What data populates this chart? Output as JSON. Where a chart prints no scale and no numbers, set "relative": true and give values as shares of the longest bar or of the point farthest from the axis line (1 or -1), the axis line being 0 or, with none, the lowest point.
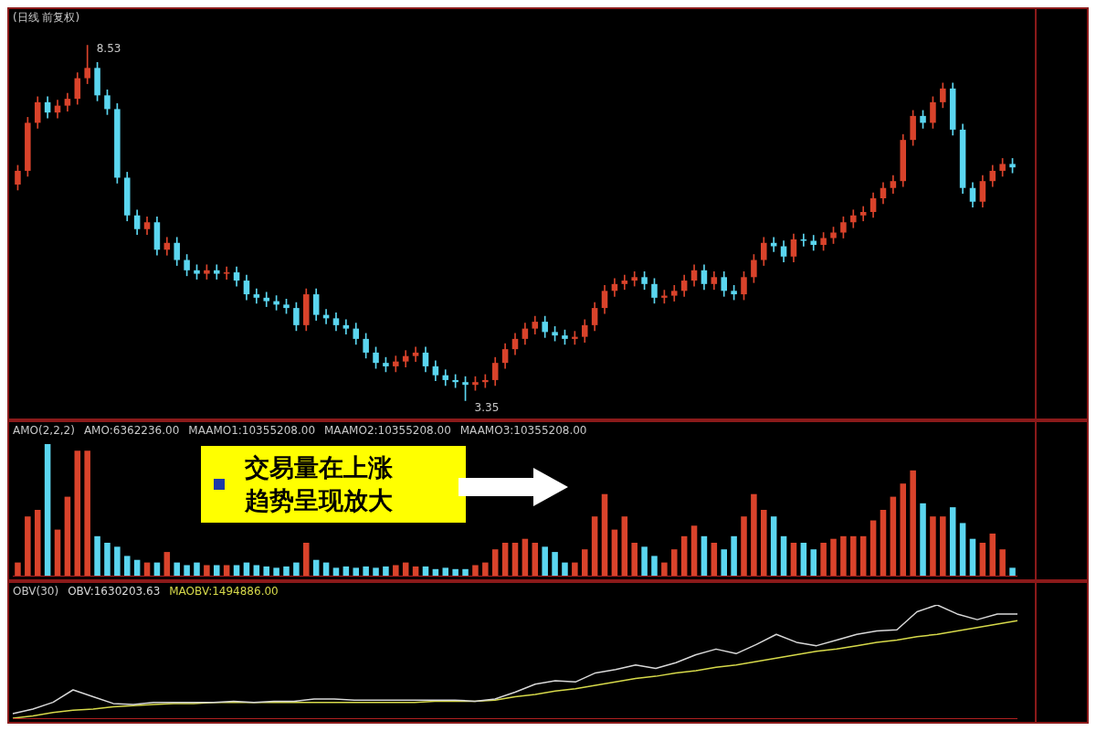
{
  "chart_data": [
    {
      "type": "candlestick",
      "title": "(日线 前复权)",
      "categories": [
        null,
        null,
        null,
        null,
        null,
        null,
        null,
        null,
        null,
        null,
        null,
        null,
        null,
        null,
        null,
        null,
        null,
        null,
        null,
        null,
        null,
        null,
        null,
        null,
        null,
        null,
        null,
        null,
        null,
        null,
        null,
        null,
        null,
        null,
        null,
        null,
        null,
        null,
        null,
        null,
        null,
        null,
        null,
        null,
        null,
        null,
        null,
        null,
        null,
        null,
        null,
        null,
        null,
        null,
        null,
        null,
        null,
        null,
        null,
        null,
        null,
        null,
        null,
        null,
        null,
        null,
        null,
        null,
        null,
        null,
        null,
        null,
        null,
        null,
        null,
        null,
        null,
        null,
        null,
        null,
        null,
        null,
        null,
        null,
        null,
        null,
        null,
        null,
        null,
        null,
        null,
        null,
        null,
        null,
        null,
        null,
        null,
        null,
        null,
        null,
        null
      ],
      "ohlc": [
        [
          6.5,
          6.78,
          6.42,
          6.7
        ],
        [
          6.7,
          7.48,
          6.62,
          7.4
        ],
        [
          7.4,
          7.78,
          7.32,
          7.7
        ],
        [
          7.7,
          7.78,
          7.47,
          7.55
        ],
        [
          7.55,
          7.73,
          7.47,
          7.65
        ],
        [
          7.65,
          7.83,
          7.57,
          7.75
        ],
        [
          7.75,
          8.13,
          7.67,
          8.05
        ],
        [
          8.05,
          8.53,
          7.97,
          8.2
        ],
        [
          8.2,
          8.28,
          7.72,
          7.8
        ],
        [
          7.8,
          7.88,
          7.52,
          7.6
        ],
        [
          7.6,
          7.68,
          6.52,
          6.6
        ],
        [
          6.6,
          6.68,
          5.97,
          6.05
        ],
        [
          6.05,
          6.13,
          5.77,
          5.85
        ],
        [
          5.85,
          6.03,
          5.77,
          5.95
        ],
        [
          5.95,
          6.03,
          5.47,
          5.55
        ],
        [
          5.55,
          5.73,
          5.47,
          5.65
        ],
        [
          5.65,
          5.73,
          5.32,
          5.4
        ],
        [
          5.4,
          5.48,
          5.17,
          5.25
        ],
        [
          5.25,
          5.33,
          5.12,
          5.2
        ],
        [
          5.2,
          5.33,
          5.12,
          5.25
        ],
        [
          5.25,
          5.33,
          5.12,
          5.2
        ],
        [
          5.2,
          5.3,
          5.12,
          5.22
        ],
        [
          5.22,
          5.3,
          5.02,
          5.1
        ],
        [
          5.1,
          5.18,
          4.82,
          4.9
        ],
        [
          4.9,
          4.98,
          4.77,
          4.85
        ],
        [
          4.85,
          4.93,
          4.72,
          4.8
        ],
        [
          4.8,
          4.88,
          4.67,
          4.75
        ],
        [
          4.75,
          4.83,
          4.62,
          4.7
        ],
        [
          4.7,
          4.78,
          4.37,
          4.45
        ],
        [
          4.45,
          4.98,
          4.37,
          4.9
        ],
        [
          4.9,
          4.98,
          4.52,
          4.6
        ],
        [
          4.6,
          4.68,
          4.47,
          4.55
        ],
        [
          4.55,
          4.63,
          4.37,
          4.45
        ],
        [
          4.45,
          4.53,
          4.32,
          4.4
        ],
        [
          4.4,
          4.48,
          4.17,
          4.25
        ],
        [
          4.25,
          4.33,
          3.97,
          4.05
        ],
        [
          4.05,
          4.13,
          3.82,
          3.9
        ],
        [
          3.9,
          3.98,
          3.77,
          3.85
        ],
        [
          3.85,
          4.0,
          3.77,
          3.92
        ],
        [
          3.92,
          4.08,
          3.84,
          4.0
        ],
        [
          4.0,
          4.13,
          3.92,
          4.05
        ],
        [
          4.05,
          4.13,
          3.77,
          3.85
        ],
        [
          3.85,
          3.93,
          3.64,
          3.72
        ],
        [
          3.72,
          3.8,
          3.57,
          3.65
        ],
        [
          3.65,
          3.73,
          3.54,
          3.62
        ],
        [
          3.62,
          3.7,
          3.35,
          3.58
        ],
        [
          3.58,
          3.7,
          3.5,
          3.62
        ],
        [
          3.62,
          3.73,
          3.54,
          3.65
        ],
        [
          3.65,
          3.98,
          3.57,
          3.9
        ],
        [
          3.9,
          4.18,
          3.82,
          4.1
        ],
        [
          4.1,
          4.33,
          4.02,
          4.25
        ],
        [
          4.25,
          4.48,
          4.17,
          4.4
        ],
        [
          4.4,
          4.58,
          4.32,
          4.5
        ],
        [
          4.5,
          4.58,
          4.27,
          4.35
        ],
        [
          4.35,
          4.43,
          4.22,
          4.3
        ],
        [
          4.3,
          4.38,
          4.17,
          4.25
        ],
        [
          4.25,
          4.36,
          4.17,
          4.28
        ],
        [
          4.28,
          4.53,
          4.2,
          4.45
        ],
        [
          4.45,
          4.78,
          4.37,
          4.7
        ],
        [
          4.7,
          5.03,
          4.62,
          4.95
        ],
        [
          4.95,
          5.13,
          4.87,
          5.05
        ],
        [
          5.05,
          5.18,
          4.97,
          5.1
        ],
        [
          5.1,
          5.23,
          5.02,
          5.15
        ],
        [
          5.15,
          5.23,
          4.97,
          5.05
        ],
        [
          5.05,
          5.13,
          4.77,
          4.85
        ],
        [
          4.85,
          4.96,
          4.77,
          4.88
        ],
        [
          4.88,
          5.03,
          4.8,
          4.95
        ],
        [
          4.95,
          5.18,
          4.87,
          5.1
        ],
        [
          5.1,
          5.33,
          5.02,
          5.25
        ],
        [
          5.25,
          5.33,
          4.97,
          5.05
        ],
        [
          5.05,
          5.23,
          4.97,
          5.15
        ],
        [
          5.15,
          5.23,
          4.87,
          4.95
        ],
        [
          4.95,
          5.03,
          4.82,
          4.9
        ],
        [
          4.9,
          5.23,
          4.82,
          5.15
        ],
        [
          5.15,
          5.48,
          5.07,
          5.4
        ],
        [
          5.4,
          5.73,
          5.32,
          5.65
        ],
        [
          5.65,
          5.73,
          5.52,
          5.6
        ],
        [
          5.6,
          5.68,
          5.37,
          5.45
        ],
        [
          5.45,
          5.78,
          5.37,
          5.7
        ],
        [
          5.7,
          5.78,
          5.6,
          5.68
        ],
        [
          5.68,
          5.76,
          5.54,
          5.62
        ],
        [
          5.62,
          5.8,
          5.54,
          5.72
        ],
        [
          5.72,
          5.88,
          5.64,
          5.8
        ],
        [
          5.8,
          6.03,
          5.72,
          5.95
        ],
        [
          5.95,
          6.13,
          5.87,
          6.05
        ],
        [
          6.05,
          6.18,
          5.97,
          6.1
        ],
        [
          6.1,
          6.38,
          6.02,
          6.3
        ],
        [
          6.3,
          6.53,
          6.22,
          6.45
        ],
        [
          6.45,
          6.63,
          6.37,
          6.55
        ],
        [
          6.55,
          7.23,
          6.47,
          7.15
        ],
        [
          7.15,
          7.58,
          7.07,
          7.5
        ],
        [
          7.5,
          7.58,
          7.32,
          7.4
        ],
        [
          7.4,
          7.78,
          7.32,
          7.7
        ],
        [
          7.7,
          7.98,
          7.62,
          7.9
        ],
        [
          7.9,
          7.98,
          7.22,
          7.3
        ],
        [
          7.3,
          7.38,
          6.37,
          6.45
        ],
        [
          6.45,
          6.53,
          6.17,
          6.25
        ],
        [
          6.25,
          6.63,
          6.17,
          6.55
        ],
        [
          6.55,
          6.78,
          6.47,
          6.7
        ],
        [
          6.7,
          6.88,
          6.62,
          6.8
        ],
        [
          6.8,
          6.88,
          6.67,
          6.75
        ]
      ],
      "colors": [
        "#d9432b",
        "#d9432b",
        "#d9432b",
        "#5bd6f0",
        "#d9432b",
        "#d9432b",
        "#d9432b",
        "#d9432b",
        "#5bd6f0",
        "#5bd6f0",
        "#5bd6f0",
        "#5bd6f0",
        "#5bd6f0",
        "#d9432b",
        "#5bd6f0",
        "#d9432b",
        "#5bd6f0",
        "#5bd6f0",
        "#5bd6f0",
        "#d9432b",
        "#5bd6f0",
        "#d9432b",
        "#5bd6f0",
        "#5bd6f0",
        "#5bd6f0",
        "#5bd6f0",
        "#5bd6f0",
        "#5bd6f0",
        "#5bd6f0",
        "#d9432b",
        "#5bd6f0",
        "#5bd6f0",
        "#5bd6f0",
        "#5bd6f0",
        "#5bd6f0",
        "#5bd6f0",
        "#5bd6f0",
        "#5bd6f0",
        "#d9432b",
        "#d9432b",
        "#d9432b",
        "#5bd6f0",
        "#5bd6f0",
        "#5bd6f0",
        "#5bd6f0",
        "#5bd6f0",
        "#d9432b",
        "#d9432b",
        "#d9432b",
        "#d9432b",
        "#d9432b",
        "#d9432b",
        "#d9432b",
        "#5bd6f0",
        "#5bd6f0",
        "#5bd6f0",
        "#d9432b",
        "#d9432b",
        "#d9432b",
        "#d9432b",
        "#d9432b",
        "#d9432b",
        "#d9432b",
        "#5bd6f0",
        "#5bd6f0",
        "#d9432b",
        "#d9432b",
        "#d9432b",
        "#d9432b",
        "#5bd6f0",
        "#d9432b",
        "#5bd6f0",
        "#5bd6f0",
        "#d9432b",
        "#d9432b",
        "#d9432b",
        "#5bd6f0",
        "#5bd6f0",
        "#d9432b",
        "#5bd6f0",
        "#5bd6f0",
        "#d9432b",
        "#d9432b",
        "#d9432b",
        "#d9432b",
        "#d9432b",
        "#d9432b",
        "#d9432b",
        "#d9432b",
        "#d9432b",
        "#d9432b",
        "#5bd6f0",
        "#d9432b",
        "#d9432b",
        "#5bd6f0",
        "#5bd6f0",
        "#5bd6f0",
        "#d9432b",
        "#d9432b",
        "#d9432b",
        "#5bd6f0"
      ],
      "annotations": [
        "8.53",
        "3.35"
      ]
    },
    {
      "type": "bar",
      "relative": true,
      "categories": [
        null,
        null,
        null,
        null,
        null,
        null,
        null,
        null,
        null,
        null,
        null,
        null,
        null,
        null,
        null,
        null,
        null,
        null,
        null,
        null,
        null,
        null,
        null,
        null,
        null,
        null,
        null,
        null,
        null,
        null,
        null,
        null,
        null,
        null,
        null,
        null,
        null,
        null,
        null,
        null,
        null,
        null,
        null,
        null,
        null,
        null,
        null,
        null,
        null,
        null,
        null,
        null,
        null,
        null,
        null,
        null,
        null,
        null,
        null,
        null,
        null,
        null,
        null,
        null,
        null,
        null,
        null,
        null,
        null,
        null,
        null,
        null,
        null,
        null,
        null,
        null,
        null,
        null,
        null,
        null,
        null,
        null,
        null,
        null,
        null,
        null,
        null,
        null,
        null,
        null,
        null,
        null,
        null,
        null,
        null,
        null,
        null,
        null,
        null,
        null,
        null
      ],
      "values": [
        0.1,
        0.45,
        0.5,
        1.0,
        0.35,
        0.6,
        0.95,
        0.95,
        0.3,
        0.25,
        0.22,
        0.15,
        0.12,
        0.1,
        0.1,
        0.18,
        0.1,
        0.08,
        0.1,
        0.08,
        0.08,
        0.08,
        0.08,
        0.1,
        0.08,
        0.07,
        0.06,
        0.07,
        0.1,
        0.25,
        0.12,
        0.1,
        0.06,
        0.07,
        0.06,
        0.07,
        0.06,
        0.07,
        0.08,
        0.1,
        0.07,
        0.07,
        0.05,
        0.06,
        0.05,
        0.05,
        0.08,
        0.1,
        0.2,
        0.25,
        0.25,
        0.28,
        0.25,
        0.22,
        0.18,
        0.1,
        0.1,
        0.2,
        0.45,
        0.62,
        0.35,
        0.45,
        0.25,
        0.22,
        0.15,
        0.1,
        0.2,
        0.3,
        0.38,
        0.3,
        0.25,
        0.2,
        0.3,
        0.45,
        0.62,
        0.5,
        0.45,
        0.3,
        0.25,
        0.25,
        0.2,
        0.25,
        0.28,
        0.3,
        0.3,
        0.3,
        0.42,
        0.5,
        0.6,
        0.7,
        0.8,
        0.55,
        0.45,
        0.45,
        0.52,
        0.4,
        0.28,
        0.25,
        0.32,
        0.2,
        0.06
      ],
      "colors": [
        "#d9432b",
        "#d9432b",
        "#d9432b",
        "#5bd6f0",
        "#d9432b",
        "#d9432b",
        "#d9432b",
        "#d9432b",
        "#5bd6f0",
        "#5bd6f0",
        "#5bd6f0",
        "#5bd6f0",
        "#5bd6f0",
        "#d9432b",
        "#5bd6f0",
        "#d9432b",
        "#5bd6f0",
        "#5bd6f0",
        "#5bd6f0",
        "#d9432b",
        "#5bd6f0",
        "#d9432b",
        "#5bd6f0",
        "#5bd6f0",
        "#5bd6f0",
        "#5bd6f0",
        "#5bd6f0",
        "#5bd6f0",
        "#5bd6f0",
        "#d9432b",
        "#5bd6f0",
        "#5bd6f0",
        "#5bd6f0",
        "#5bd6f0",
        "#5bd6f0",
        "#5bd6f0",
        "#5bd6f0",
        "#5bd6f0",
        "#d9432b",
        "#d9432b",
        "#d9432b",
        "#5bd6f0",
        "#5bd6f0",
        "#5bd6f0",
        "#5bd6f0",
        "#5bd6f0",
        "#d9432b",
        "#d9432b",
        "#d9432b",
        "#d9432b",
        "#d9432b",
        "#d9432b",
        "#d9432b",
        "#5bd6f0",
        "#5bd6f0",
        "#5bd6f0",
        "#d9432b",
        "#d9432b",
        "#d9432b",
        "#d9432b",
        "#d9432b",
        "#d9432b",
        "#d9432b",
        "#5bd6f0",
        "#5bd6f0",
        "#d9432b",
        "#d9432b",
        "#d9432b",
        "#d9432b",
        "#5bd6f0",
        "#d9432b",
        "#5bd6f0",
        "#5bd6f0",
        "#d9432b",
        "#d9432b",
        "#d9432b",
        "#5bd6f0",
        "#5bd6f0",
        "#d9432b",
        "#5bd6f0",
        "#5bd6f0",
        "#d9432b",
        "#d9432b",
        "#d9432b",
        "#d9432b",
        "#d9432b",
        "#d9432b",
        "#d9432b",
        "#d9432b",
        "#d9432b",
        "#d9432b",
        "#5bd6f0",
        "#d9432b",
        "#d9432b",
        "#5bd6f0",
        "#5bd6f0",
        "#5bd6f0",
        "#d9432b",
        "#d9432b",
        "#d9432b",
        "#5bd6f0"
      ],
      "annotations": [
        "AMO(2,2,2)",
        "AMO:6362236.00",
        "MAAMO1:10355208.00",
        "MAAMO2:10355208.00",
        "MAAMO3:10355208.00",
        "交易量在上涨趋势呈现放大"
      ]
    },
    {
      "type": "line",
      "relative": true,
      "legend": "top left",
      "categories": [
        null,
        null,
        null,
        null,
        null,
        null,
        null,
        null,
        null,
        null,
        null,
        null,
        null,
        null,
        null,
        null,
        null,
        null,
        null,
        null,
        null,
        null,
        null,
        null,
        null,
        null,
        null,
        null,
        null,
        null,
        null,
        null,
        null,
        null,
        null,
        null,
        null,
        null,
        null,
        null,
        null,
        null,
        null,
        null,
        null,
        null,
        null,
        null,
        null,
        null,
        null
      ],
      "series": [
        {
          "name": "OBV:1630203.63",
          "color": "#d8d8d8",
          "values": [
            0.04,
            0.08,
            0.14,
            0.25,
            0.19,
            0.13,
            0.12,
            0.14,
            0.14,
            0.14,
            0.14,
            0.15,
            0.14,
            0.15,
            0.15,
            0.17,
            0.17,
            0.16,
            0.16,
            0.16,
            0.16,
            0.16,
            0.16,
            0.15,
            0.17,
            0.23,
            0.3,
            0.33,
            0.32,
            0.4,
            0.43,
            0.47,
            0.44,
            0.49,
            0.56,
            0.61,
            0.57,
            0.65,
            0.74,
            0.67,
            0.64,
            0.69,
            0.74,
            0.77,
            0.78,
            0.94,
            1.0,
            0.92,
            0.87,
            0.92,
            0.92
          ]
        },
        {
          "name": "MAOBV:1494886.00",
          "color": "#d6d94a",
          "values": [
            0.0,
            0.02,
            0.05,
            0.07,
            0.08,
            0.1,
            0.11,
            0.12,
            0.13,
            0.13,
            0.14,
            0.14,
            0.14,
            0.14,
            0.14,
            0.14,
            0.14,
            0.14,
            0.14,
            0.14,
            0.14,
            0.15,
            0.15,
            0.15,
            0.16,
            0.19,
            0.21,
            0.24,
            0.26,
            0.29,
            0.32,
            0.35,
            0.37,
            0.4,
            0.42,
            0.45,
            0.47,
            0.5,
            0.53,
            0.56,
            0.59,
            0.61,
            0.64,
            0.67,
            0.69,
            0.72,
            0.74,
            0.77,
            0.8,
            0.83,
            0.86
          ]
        }
      ],
      "annotations": [
        "OBV(30)"
      ]
    }
  ]
}
